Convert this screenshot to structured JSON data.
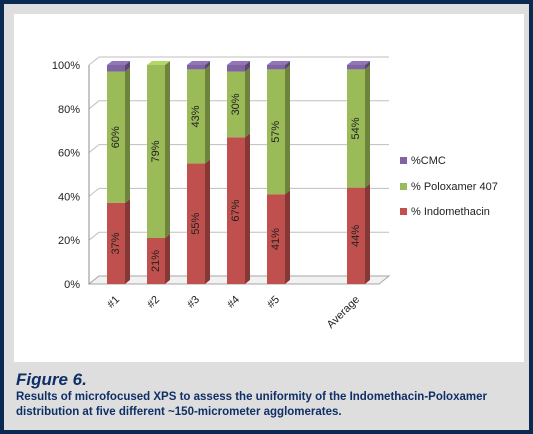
{
  "figure": {
    "title": "Figure 6.",
    "caption": "Results of microfocused XPS to assess the uniformity of the Indomethacin-Poloxamer distribution at five different ~150-micrometer agglomerates."
  },
  "chart_data": {
    "type": "bar",
    "stacked": true,
    "style": "3d-stacked-column",
    "categories": [
      "#1",
      "#2",
      "#3",
      "#4",
      "#5",
      "Average"
    ],
    "series": [
      {
        "name": "% Indomethacin",
        "values": [
          37,
          21,
          55,
          67,
          41,
          44
        ],
        "labels": [
          "37%",
          "21%",
          "55%",
          "67%",
          "41%",
          "44%"
        ],
        "color": "#c0504d"
      },
      {
        "name": "% Poloxamer 407",
        "values": [
          60,
          79,
          43,
          30,
          57,
          54
        ],
        "labels": [
          "60%",
          "79%",
          "43%",
          "30%",
          "57%",
          "54%"
        ],
        "color": "#9bbb59"
      },
      {
        "name": "%CMC",
        "values": [
          3,
          0,
          2,
          3,
          2,
          2
        ],
        "color": "#8064a2"
      }
    ],
    "ylim": [
      0,
      100
    ],
    "yticks": [
      "0%",
      "20%",
      "40%",
      "60%",
      "80%",
      "100%"
    ],
    "ytick_values": [
      0,
      20,
      40,
      60,
      80,
      100
    ],
    "grid": true,
    "legend_position": "right",
    "legend_order": [
      "%CMC",
      "% Poloxamer 407",
      "% Indomethacin"
    ],
    "xlabel": "",
    "ylabel": ""
  }
}
